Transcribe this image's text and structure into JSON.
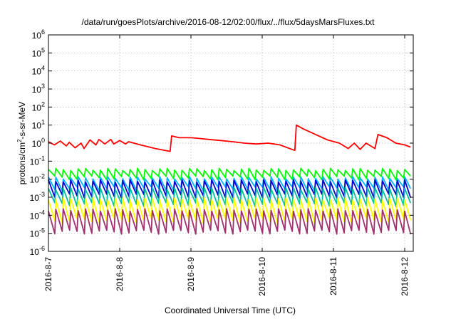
{
  "chart_data": {
    "type": "line",
    "title": "/data/run/goesPlots/archive/2016-08-12/02:00/flux/../flux/5daysMarsFluxes.txt",
    "xlabel": "Coordinated Universal Time (UTC)",
    "ylabel_parts": [
      "protons/cm",
      "2",
      "-s-sr-MeV"
    ],
    "y_scale": "log",
    "ylim": [
      1e-06,
      1000000.0
    ],
    "xlim": [
      "2016-08-07T00:00",
      "2016-08-12T02:00"
    ],
    "grid": true,
    "legend": "none",
    "x_tick_labels": [
      "2016-8-7",
      "2016-8-8",
      "2016-8-9",
      "2016-8-10",
      "2016-8-11",
      "2016-8-12"
    ],
    "y_ticks": [
      {
        "base": "10",
        "exp": "-6",
        "value": 1e-06
      },
      {
        "base": "10",
        "exp": "-5",
        "value": 1e-05
      },
      {
        "base": "10",
        "exp": "-4",
        "value": 0.0001
      },
      {
        "base": "10",
        "exp": "-3",
        "value": 0.001
      },
      {
        "base": "10",
        "exp": "-2",
        "value": 0.01
      },
      {
        "base": "10",
        "exp": "-1",
        "value": 0.1
      },
      {
        "base": "10",
        "exp": "0",
        "value": 1
      },
      {
        "base": "10",
        "exp": "1",
        "value": 10
      },
      {
        "base": "10",
        "exp": "2",
        "value": 100
      },
      {
        "base": "10",
        "exp": "3",
        "value": 1000
      },
      {
        "base": "10",
        "exp": "4",
        "value": 10000
      },
      {
        "base": "10",
        "exp": "5",
        "value": 100000
      },
      {
        "base": "10",
        "exp": "6",
        "value": 1000000
      }
    ],
    "series": [
      {
        "color": "#ff0000",
        "x": [
          "2016-08-07T00:00",
          "2016-08-07T02:00",
          "2016-08-07T04:00",
          "2016-08-07T06:00",
          "2016-08-07T07:00",
          "2016-08-07T09:00",
          "2016-08-07T11:00",
          "2016-08-07T12:00",
          "2016-08-07T14:00",
          "2016-08-07T16:00",
          "2016-08-07T17:00",
          "2016-08-07T19:00",
          "2016-08-07T21:00",
          "2016-08-07T22:00",
          "2016-08-08T00:00",
          "2016-08-08T02:00",
          "2016-08-08T03:00",
          "2016-08-08T07:00",
          "2016-08-08T12:00",
          "2016-08-08T17:00",
          "2016-08-08T17:30",
          "2016-08-08T20:00",
          "2016-08-09T00:00",
          "2016-08-09T03:00",
          "2016-08-09T06:00",
          "2016-08-09T10:00",
          "2016-08-09T14:00",
          "2016-08-09T18:00",
          "2016-08-09T22:00",
          "2016-08-10T02:00",
          "2016-08-10T06:00",
          "2016-08-10T10:00",
          "2016-08-10T11:00",
          "2016-08-10T11:30",
          "2016-08-10T14:00",
          "2016-08-10T18:00",
          "2016-08-10T22:00",
          "2016-08-11T02:00",
          "2016-08-11T05:00",
          "2016-08-11T07:00",
          "2016-08-11T09:00",
          "2016-08-11T11:00",
          "2016-08-11T14:00",
          "2016-08-11T15:00",
          "2016-08-11T18:00",
          "2016-08-11T21:00",
          "2016-08-12T00:00",
          "2016-08-12T02:00"
        ],
        "values": [
          1.2,
          0.8,
          1.3,
          0.7,
          1.1,
          0.55,
          1.0,
          0.5,
          1.5,
          0.8,
          1.6,
          0.9,
          1.6,
          0.9,
          1.4,
          0.9,
          1.2,
          0.8,
          0.5,
          0.35,
          2.5,
          2.0,
          2.0,
          1.8,
          1.6,
          1.4,
          1.2,
          1.0,
          0.9,
          1.0,
          0.8,
          0.45,
          0.4,
          10,
          6.0,
          3.0,
          1.5,
          1.0,
          0.5,
          1.0,
          0.45,
          1.0,
          0.5,
          3.0,
          2.0,
          1.0,
          0.8,
          0.6
        ]
      }
    ],
    "periodic_series": [
      {
        "color": "#00ff00",
        "period_hours": 2.5,
        "start": "2016-08-07T00:00",
        "end": "2016-08-12T02:00",
        "high": 0.035,
        "low": 0.012
      },
      {
        "color": "#00b4ff",
        "period_hours": 2.5,
        "start": "2016-08-07T00:00",
        "end": "2016-08-12T02:00",
        "high": 0.012,
        "low": 0.003
      },
      {
        "color": "#0000d0",
        "period_hours": 2.5,
        "start": "2016-08-07T00:00",
        "end": "2016-08-12T02:00",
        "high": 0.008,
        "low": 0.0012
      },
      {
        "color": "#00c0a0",
        "period_hours": 2.5,
        "start": "2016-08-07T00:00",
        "end": "2016-08-12T02:00",
        "high": 0.003,
        "low": 0.0004
      },
      {
        "color": "#ffff00",
        "period_hours": 2.5,
        "start": "2016-08-07T00:00",
        "end": "2016-08-12T02:00",
        "high": 0.0008,
        "low": 5e-05
      },
      {
        "color": "#a03070",
        "period_hours": 2.5,
        "start": "2016-08-07T00:00",
        "end": "2016-08-12T02:00",
        "high": 0.0002,
        "low": 1.2e-05
      }
    ]
  }
}
